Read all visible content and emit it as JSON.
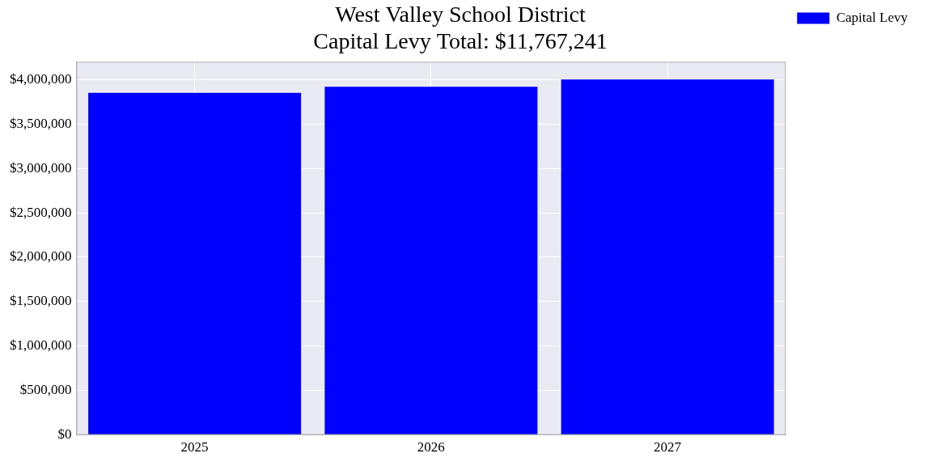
{
  "chart_data": {
    "type": "bar",
    "title": [
      "West Valley School District",
      "Capital Levy Total: $11,767,241"
    ],
    "categories": [
      "2025",
      "2026",
      "2027"
    ],
    "series": [
      {
        "name": "Capital Levy",
        "color": "#0000ff",
        "values": [
          3850000,
          3920000,
          4000000
        ]
      }
    ],
    "ylim": [
      0,
      4200000
    ],
    "yticks": [
      {
        "value": 0,
        "label": "$0"
      },
      {
        "value": 500000,
        "label": "$500,000"
      },
      {
        "value": 1000000,
        "label": "$1,000,000"
      },
      {
        "value": 1500000,
        "label": "$1,500,000"
      },
      {
        "value": 2000000,
        "label": "$2,000,000"
      },
      {
        "value": 2500000,
        "label": "$2,500,000"
      },
      {
        "value": 3000000,
        "label": "$3,000,000"
      },
      {
        "value": 3500000,
        "label": "$3,500,000"
      },
      {
        "value": 4000000,
        "label": "$4,000,000"
      }
    ],
    "grid": true,
    "legend": "upper right"
  }
}
